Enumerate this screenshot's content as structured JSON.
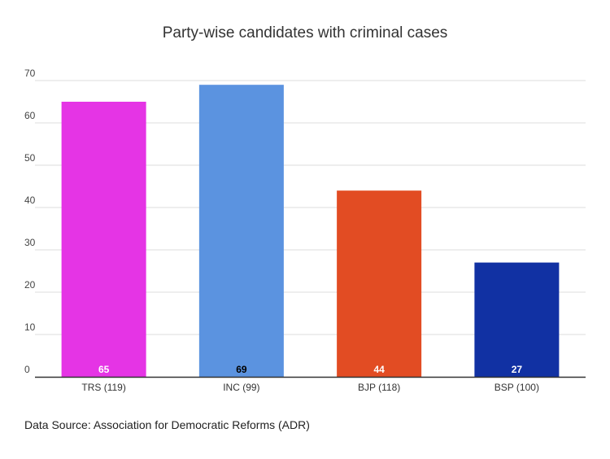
{
  "chart_data": {
    "type": "bar",
    "title": "Party-wise candidates with criminal cases",
    "categories": [
      "TRS (119)",
      "INC (99)",
      "BJP (118)",
      "BSP (100)"
    ],
    "values": [
      65,
      69,
      44,
      27
    ],
    "bar_colors": [
      "#e534e5",
      "#5b93e0",
      "#e24c23",
      "#1131a3"
    ],
    "data_label_colors": [
      "#ffffff",
      "#000000",
      "#ffffff",
      "#ffffff"
    ],
    "ylim": [
      0,
      70
    ],
    "yticks": [
      0,
      10,
      20,
      30,
      40,
      50,
      60,
      70
    ],
    "grid": true,
    "legend": "none",
    "xlabel": "",
    "ylabel": ""
  },
  "footer": {
    "source": "Data Source: Association for Democratic Reforms (ADR)"
  }
}
